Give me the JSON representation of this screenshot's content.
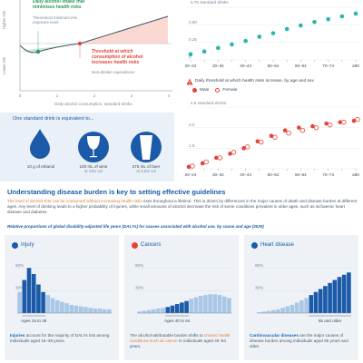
{
  "colors": {
    "red": "#e8413a",
    "blue": "#1a5aa8",
    "teal": "#26b8a8",
    "green": "#2a9a5a",
    "orange": "#e07a36",
    "bluelight": "#a9c7e6"
  },
  "left_chart": {
    "ylabel_high": "Higher risk",
    "ylabel_low": "Lower risk",
    "xlabel": "Daily alcohol consumption, standard drinks",
    "xticks": [
      "0",
      "1",
      "2",
      "3",
      "4"
    ],
    "ann_min_title": "Daily alcohol intake that minimises health risks",
    "ann_min_sub": "Theoretical minimum risk exposure level",
    "ann_thr_title": "Threshold at which consumption of alcohol increases health risks",
    "ann_thr_sub": "Non-drinker equivalence"
  },
  "standard_drink": {
    "heading": "One standard drink is equivalent to...",
    "items": [
      {
        "label": "10 g of ethanol",
        "sub": ""
      },
      {
        "label": "100 mL of wine",
        "sub": "at 13% vol"
      },
      {
        "label": "375 mL of beer",
        "sub": "at 3.5% vol"
      }
    ]
  },
  "chart_data": [
    {
      "type": "scatter",
      "title": "",
      "ylabel": "0.75 standard drinks",
      "yticks": [
        "0.75",
        "0.50",
        "0.25",
        "0"
      ],
      "ylim": [
        0,
        0.75
      ],
      "categories": [
        "20–24",
        "25–29",
        "30–34",
        "35–39",
        "40–44",
        "45–49",
        "50–54",
        "55–59",
        "60–64",
        "65–69",
        "70–74",
        "75–79",
        "≥80"
      ],
      "xtick_labels": [
        "20–24",
        "30–34",
        "40–44",
        "50–54",
        "60–64",
        "70–74",
        "≥80"
      ],
      "series": [
        {
          "name": "",
          "values": [
            0.08,
            0.12,
            0.17,
            0.22,
            0.27,
            0.33,
            0.38,
            0.44,
            0.49,
            0.54,
            0.58,
            0.62,
            0.66
          ]
        }
      ]
    },
    {
      "type": "scatter",
      "title": "Daily threshold at which health risks increase, by age and sex",
      "ylabel": "4.5 standard drinks",
      "yticks": [
        "4.5",
        "3.0",
        "1.5",
        "0"
      ],
      "ylim": [
        0,
        4.5
      ],
      "categories": [
        "20–24",
        "25–29",
        "30–34",
        "35–39",
        "40–44",
        "45–49",
        "50–54",
        "55–59",
        "60–64",
        "65–69",
        "70–74",
        "75–79",
        "≥80"
      ],
      "xtick_labels": [
        "20–24",
        "30–34",
        "40–44",
        "50–54",
        "60–64",
        "70–74",
        "≥80"
      ],
      "legend": [
        "Male",
        "Female"
      ],
      "series": [
        {
          "name": "Male",
          "values": [
            0.14,
            0.4,
            0.8,
            1.1,
            1.5,
            2.0,
            2.4,
            2.8,
            3.0,
            3.1,
            3.3,
            3.4,
            3.5
          ]
        },
        {
          "name": "Female",
          "values": [
            0.2,
            0.5,
            0.8,
            1.2,
            1.6,
            1.95,
            2.3,
            2.6,
            2.8,
            3.0,
            3.2,
            3.4,
            3.6
          ]
        }
      ]
    },
    {
      "type": "bar",
      "title": "Injury",
      "ylabel": "",
      "yticks": [
        "60%",
        "30%"
      ],
      "ylim": [
        0,
        70
      ],
      "age_note": "Ages 15 to 39",
      "values": [
        28,
        44,
        60,
        52,
        38,
        28,
        24,
        20,
        17,
        15,
        13,
        11,
        10,
        9,
        8,
        7,
        6,
        6,
        5,
        5
      ]
    },
    {
      "type": "bar",
      "title": "Cancers",
      "ylabel": "",
      "yticks": [
        "60%",
        "30%"
      ],
      "ylim": [
        0,
        70
      ],
      "age_note": "Ages 40 to 64",
      "values": [
        2,
        3,
        4,
        5,
        6,
        7,
        8,
        10,
        12,
        14,
        16,
        19,
        21,
        23,
        24,
        25,
        25,
        24,
        22,
        20
      ]
    },
    {
      "type": "bar",
      "title": "Heart disease",
      "ylabel": "",
      "yticks": [
        "60%",
        "30%"
      ],
      "ylim": [
        0,
        70
      ],
      "age_note": "65 and older",
      "values": [
        1,
        2,
        3,
        4,
        5,
        7,
        9,
        11,
        14,
        17,
        20,
        24,
        28,
        32,
        36,
        40,
        44,
        48,
        51,
        54
      ]
    }
  ],
  "section": {
    "heading": "Understanding disease burden is key to setting effective guidelines",
    "para_hl": "The level of alcohol that can be consumed without increasing health risks",
    "para_rest": " rises throughout a lifetime. This is driven by differences in the major causes of death and disease burden at different ages. Any level of drinking leads to a higher probability of injuries, while small amounts of alcohol decrease the risk of some conditions prevalent in older ages, such as ischaemic heart disease and diabetes.",
    "subheading": "Relative proportions of global disability-adjusted life years (DALYs) for causes associated with alcohol use, by cause and age (2020)"
  },
  "captions": [
    {
      "hl": "Injuries",
      "rest": " account for the majority of DALYs lost among individuals aged 15–39 years."
    },
    {
      "pre": "The alcohol-attributable burden shifts to ",
      "hl": "chronic health conditions such as cancer",
      "rest": " in individuals aged 40–64 years."
    },
    {
      "hl": "Cardiovascular diseases",
      "rest": " are the major causes of disease burden among individuals aged 65 years and older."
    }
  ]
}
